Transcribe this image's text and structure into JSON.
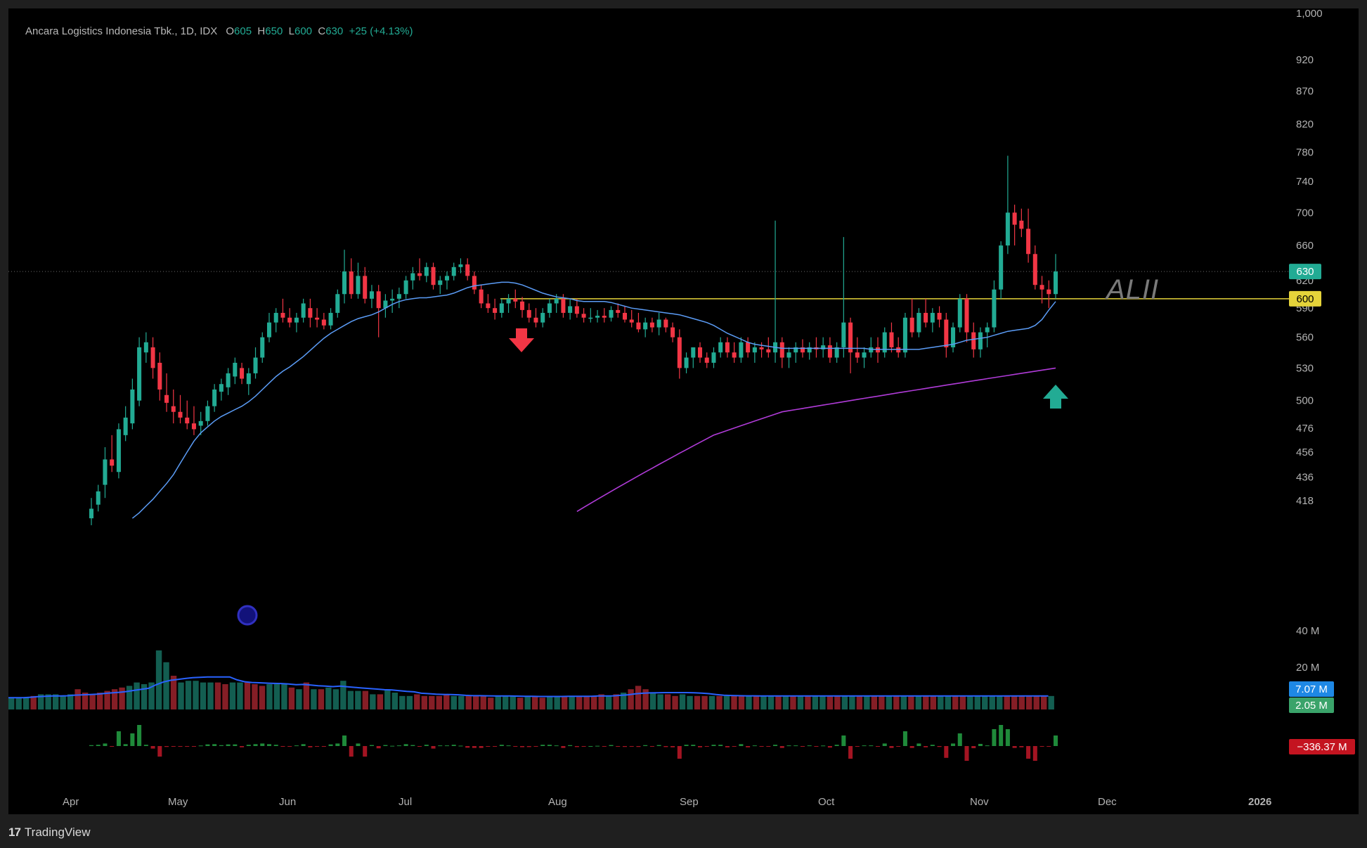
{
  "legend": {
    "symbol": "Ancara Logistics Indonesia Tbk., 1D, IDX",
    "o_label": "O",
    "o": "605",
    "h_label": "H",
    "h": "650",
    "l_label": "L",
    "l": "600",
    "c_label": "C",
    "c": "630",
    "change": "+25 (+4.13%)"
  },
  "watermark": "ALII",
  "footer": {
    "logo": "17",
    "brand": "TradingView"
  },
  "colors": {
    "up": "#22ab94",
    "down": "#f23645",
    "ma_fast": "#5b9cf6",
    "ma_slow": "#b03bd8",
    "level": "#e5d33a",
    "volume_ma": "#2962ff"
  },
  "chart_data": {
    "type": "candlestick",
    "y_axis_ticks": [
      "1,000",
      "920",
      "870",
      "820",
      "780",
      "740",
      "700",
      "660",
      "620",
      "590",
      "560",
      "530",
      "500",
      "476",
      "456",
      "436",
      "418"
    ],
    "y_scale": "log",
    "x_axis_ticks": [
      "Apr",
      "May",
      "Jun",
      "Jul",
      "Aug",
      "Sep",
      "Oct",
      "Nov",
      "Dec",
      "2026"
    ],
    "last_price_label": "630",
    "horizontal_level": {
      "value": 600,
      "label": "600"
    },
    "volume_axis_ticks": [
      "40 M",
      "20 M"
    ],
    "volume_labels": [
      "7.07 M",
      "2.05 M"
    ],
    "flow_label": "−336.37 M",
    "ohlc": [
      [
        405,
        420,
        400,
        412
      ],
      [
        415,
        430,
        410,
        425
      ],
      [
        430,
        460,
        420,
        450
      ],
      [
        450,
        470,
        440,
        445
      ],
      [
        440,
        480,
        435,
        475
      ],
      [
        470,
        495,
        465,
        485
      ],
      [
        480,
        520,
        475,
        510
      ],
      [
        500,
        560,
        495,
        550
      ],
      [
        545,
        565,
        535,
        555
      ],
      [
        550,
        560,
        520,
        530
      ],
      [
        535,
        545,
        500,
        510
      ],
      [
        505,
        525,
        490,
        498
      ],
      [
        495,
        510,
        480,
        490
      ],
      [
        490,
        505,
        480,
        485
      ],
      [
        485,
        500,
        475,
        480
      ],
      [
        480,
        495,
        470,
        475
      ],
      [
        478,
        490,
        470,
        482
      ],
      [
        482,
        500,
        478,
        495
      ],
      [
        495,
        515,
        490,
        510
      ],
      [
        508,
        520,
        500,
        515
      ],
      [
        512,
        530,
        505,
        525
      ],
      [
        522,
        540,
        515,
        535
      ],
      [
        530,
        535,
        515,
        520
      ],
      [
        515,
        530,
        505,
        525
      ],
      [
        525,
        550,
        520,
        540
      ],
      [
        540,
        565,
        535,
        560
      ],
      [
        560,
        585,
        555,
        575
      ],
      [
        575,
        590,
        565,
        585
      ],
      [
        585,
        600,
        575,
        580
      ],
      [
        580,
        590,
        570,
        575
      ],
      [
        575,
        585,
        565,
        580
      ],
      [
        580,
        600,
        575,
        595
      ],
      [
        590,
        600,
        570,
        580
      ],
      [
        580,
        590,
        570,
        578
      ],
      [
        578,
        585,
        568,
        572
      ],
      [
        572,
        590,
        568,
        585
      ],
      [
        585,
        610,
        580,
        605
      ],
      [
        605,
        655,
        595,
        630
      ],
      [
        630,
        645,
        600,
        605
      ],
      [
        605,
        640,
        600,
        625
      ],
      [
        625,
        635,
        595,
        600
      ],
      [
        600,
        615,
        590,
        608
      ],
      [
        608,
        615,
        560,
        590
      ],
      [
        590,
        605,
        580,
        598
      ],
      [
        598,
        610,
        585,
        600
      ],
      [
        600,
        612,
        590,
        605
      ],
      [
        605,
        625,
        600,
        620
      ],
      [
        620,
        635,
        610,
        628
      ],
      [
        628,
        645,
        620,
        625
      ],
      [
        625,
        640,
        618,
        635
      ],
      [
        635,
        640,
        610,
        615
      ],
      [
        615,
        625,
        605,
        620
      ],
      [
        620,
        630,
        610,
        625
      ],
      [
        625,
        640,
        620,
        635
      ],
      [
        635,
        645,
        628,
        638
      ],
      [
        638,
        645,
        620,
        625
      ],
      [
        625,
        630,
        605,
        610
      ],
      [
        610,
        615,
        590,
        595
      ],
      [
        595,
        605,
        585,
        590
      ],
      [
        590,
        600,
        578,
        585
      ],
      [
        585,
        600,
        580,
        595
      ],
      [
        595,
        605,
        585,
        600
      ],
      [
        600,
        610,
        590,
        597
      ],
      [
        597,
        602,
        580,
        588
      ],
      [
        588,
        595,
        575,
        580
      ],
      [
        580,
        590,
        570,
        575
      ],
      [
        575,
        590,
        570,
        585
      ],
      [
        585,
        600,
        580,
        595
      ],
      [
        595,
        605,
        585,
        600
      ],
      [
        600,
        605,
        580,
        585
      ],
      [
        585,
        600,
        578,
        592
      ],
      [
        592,
        600,
        580,
        584
      ],
      [
        584,
        590,
        575,
        580
      ],
      [
        580,
        590,
        575,
        580
      ],
      [
        580,
        588,
        575,
        582
      ],
      [
        582,
        590,
        575,
        580
      ],
      [
        580,
        592,
        576,
        588
      ],
      [
        588,
        595,
        580,
        585
      ],
      [
        585,
        592,
        575,
        578
      ],
      [
        578,
        588,
        570,
        575
      ],
      [
        575,
        585,
        565,
        568
      ],
      [
        568,
        580,
        560,
        575
      ],
      [
        575,
        580,
        565,
        570
      ],
      [
        570,
        585,
        562,
        578
      ],
      [
        578,
        580,
        565,
        570
      ],
      [
        570,
        575,
        555,
        560
      ],
      [
        560,
        568,
        520,
        530
      ],
      [
        530,
        545,
        525,
        540
      ],
      [
        540,
        550,
        530,
        550
      ],
      [
        550,
        555,
        535,
        540
      ],
      [
        540,
        545,
        530,
        535
      ],
      [
        535,
        550,
        530,
        545
      ],
      [
        545,
        560,
        540,
        555
      ],
      [
        555,
        560,
        540,
        545
      ],
      [
        545,
        555,
        535,
        540
      ],
      [
        540,
        560,
        535,
        555
      ],
      [
        555,
        560,
        540,
        545
      ],
      [
        545,
        555,
        535,
        550
      ],
      [
        550,
        555,
        540,
        548
      ],
      [
        548,
        560,
        540,
        545
      ],
      [
        545,
        690,
        535,
        555
      ],
      [
        555,
        560,
        530,
        540
      ],
      [
        540,
        550,
        530,
        545
      ],
      [
        545,
        555,
        535,
        550
      ],
      [
        550,
        558,
        540,
        545
      ],
      [
        545,
        555,
        538,
        550
      ],
      [
        550,
        560,
        540,
        548
      ],
      [
        548,
        560,
        540,
        552
      ],
      [
        552,
        560,
        535,
        540
      ],
      [
        540,
        555,
        535,
        550
      ],
      [
        550,
        670,
        540,
        575
      ],
      [
        575,
        580,
        525,
        545
      ],
      [
        545,
        560,
        535,
        540
      ],
      [
        540,
        550,
        530,
        545
      ],
      [
        545,
        560,
        540,
        550
      ],
      [
        550,
        560,
        535,
        545
      ],
      [
        545,
        570,
        540,
        565
      ],
      [
        565,
        575,
        545,
        550
      ],
      [
        550,
        560,
        540,
        545
      ],
      [
        545,
        585,
        540,
        580
      ],
      [
        580,
        600,
        560,
        565
      ],
      [
        565,
        590,
        560,
        585
      ],
      [
        585,
        600,
        570,
        575
      ],
      [
        575,
        590,
        565,
        585
      ],
      [
        585,
        592,
        570,
        578
      ],
      [
        578,
        585,
        540,
        550
      ],
      [
        550,
        575,
        545,
        570
      ],
      [
        570,
        605,
        565,
        600
      ],
      [
        600,
        605,
        555,
        565
      ],
      [
        565,
        575,
        540,
        548
      ],
      [
        548,
        570,
        540,
        565
      ],
      [
        565,
        575,
        550,
        570
      ],
      [
        570,
        620,
        565,
        610
      ],
      [
        610,
        665,
        600,
        660
      ],
      [
        660,
        775,
        650,
        700
      ],
      [
        700,
        710,
        660,
        685
      ],
      [
        690,
        705,
        670,
        680
      ],
      [
        680,
        705,
        640,
        650
      ],
      [
        650,
        660,
        610,
        615
      ],
      [
        615,
        625,
        595,
        610
      ],
      [
        610,
        620,
        590,
        605
      ],
      [
        605,
        650,
        600,
        630
      ]
    ],
    "sma_fast": [
      405,
      409,
      414,
      419,
      425,
      431,
      438,
      447,
      456,
      465,
      472,
      477,
      482,
      486,
      489,
      492,
      495,
      499,
      504,
      510,
      516,
      522,
      527,
      531,
      536,
      541,
      547,
      553,
      559,
      564,
      568,
      572,
      576,
      579,
      581,
      583,
      586,
      590,
      594,
      597,
      599,
      600,
      601,
      601,
      602,
      603,
      604,
      606,
      609,
      612,
      614,
      615,
      616,
      617,
      618,
      618,
      617,
      615,
      612,
      609,
      606,
      604,
      602,
      601,
      600,
      598,
      597,
      597,
      597,
      597,
      596,
      594,
      592,
      590,
      589,
      588,
      587,
      586,
      585,
      584,
      583,
      581,
      579,
      577,
      575,
      572,
      568,
      564,
      561,
      558,
      555,
      553,
      552,
      551,
      550,
      549,
      549,
      549,
      549,
      549,
      549,
      549,
      549,
      549,
      549,
      549,
      549,
      549,
      548,
      548,
      548,
      548,
      548,
      548,
      548,
      548,
      549,
      550,
      551,
      552,
      553,
      555,
      557,
      558,
      559,
      560,
      562,
      564,
      566,
      567,
      568,
      569,
      572,
      578,
      588,
      597,
      603,
      607,
      609,
      609,
      608,
      608
    ],
    "sma_slow": [
      410,
      413,
      416,
      419,
      422,
      425,
      428,
      431,
      434,
      437,
      440,
      443,
      446,
      449,
      452,
      455,
      458,
      461,
      464,
      467,
      470,
      472,
      474,
      476,
      478,
      480,
      482,
      484,
      486,
      488,
      490,
      491,
      492,
      493,
      494,
      495,
      496,
      497,
      498,
      499,
      500,
      501,
      502,
      503,
      504,
      505,
      506,
      507,
      508,
      509,
      510,
      511,
      512,
      513,
      514,
      515,
      516,
      517,
      518,
      519,
      520,
      521,
      522,
      523,
      524,
      525,
      526,
      527,
      528,
      529,
      530
    ],
    "volume_note": "heights shown as relative volume",
    "volume": [
      7,
      7,
      7,
      8,
      9,
      9,
      9,
      8,
      9,
      12,
      10,
      9,
      10,
      11,
      12,
      13,
      14,
      16,
      15,
      16,
      35,
      28,
      20,
      16,
      17,
      17,
      16,
      16,
      16,
      15,
      16,
      16,
      16,
      15,
      14,
      15,
      15,
      15,
      13,
      12,
      16,
      12,
      12,
      13,
      12,
      17,
      11,
      11,
      11,
      9,
      9,
      12,
      10,
      8,
      8,
      9,
      8,
      8,
      8,
      9,
      8,
      8,
      8,
      8,
      8,
      7,
      8,
      8,
      8,
      7,
      8,
      8,
      7,
      8,
      8,
      8,
      8,
      8,
      8,
      8,
      9,
      8,
      9,
      10,
      12,
      14,
      12,
      10,
      9,
      9,
      8,
      9,
      8,
      8,
      8,
      8,
      8,
      8,
      8,
      8,
      8,
      8,
      8,
      8,
      8,
      8,
      8,
      8,
      8,
      8,
      8,
      8,
      8,
      8,
      8,
      8,
      8,
      8,
      8,
      8,
      8,
      8,
      8,
      8,
      8,
      8,
      8,
      8,
      8,
      8,
      8,
      8,
      8,
      8,
      8,
      8,
      8,
      8,
      8,
      8,
      8,
      8
    ]
  }
}
